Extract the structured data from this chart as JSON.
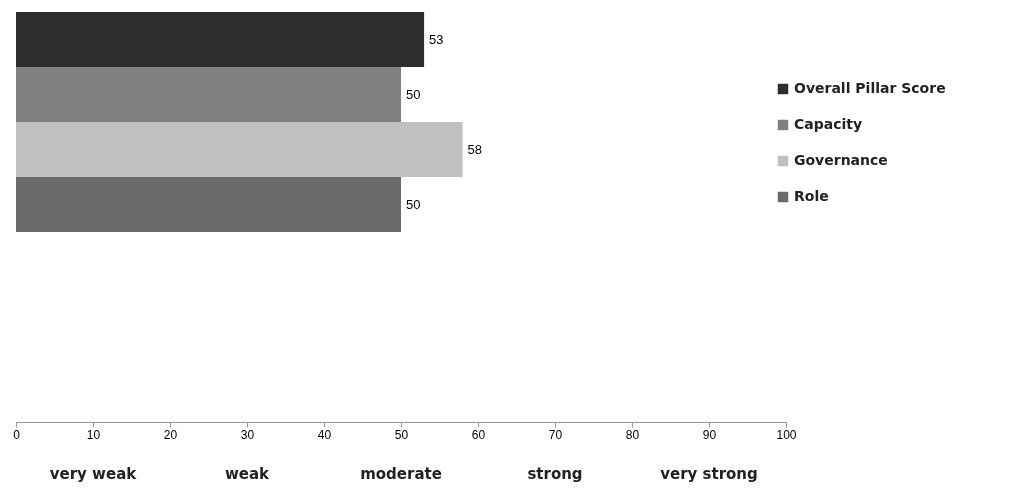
{
  "chart_data": {
    "type": "bar",
    "orientation": "horizontal",
    "categories": [
      null
    ],
    "series": [
      {
        "name": "Overall Pillar Score",
        "color": "#2d2d2d",
        "values": [
          53
        ]
      },
      {
        "name": "Capacity",
        "color": "#808080",
        "values": [
          50
        ]
      },
      {
        "name": "Governance",
        "color": "#c0c0c0",
        "values": [
          58
        ]
      },
      {
        "name": "Role",
        "color": "#6a6a6a",
        "values": [
          50
        ]
      }
    ],
    "xlim": [
      0,
      100
    ],
    "xticks": [
      0,
      10,
      20,
      30,
      40,
      50,
      60,
      70,
      80,
      90,
      100
    ],
    "data_labels": true,
    "grid": false,
    "legend": "right",
    "annotations": [
      "very weak",
      "weak",
      "moderate",
      "strong",
      "very strong"
    ]
  }
}
